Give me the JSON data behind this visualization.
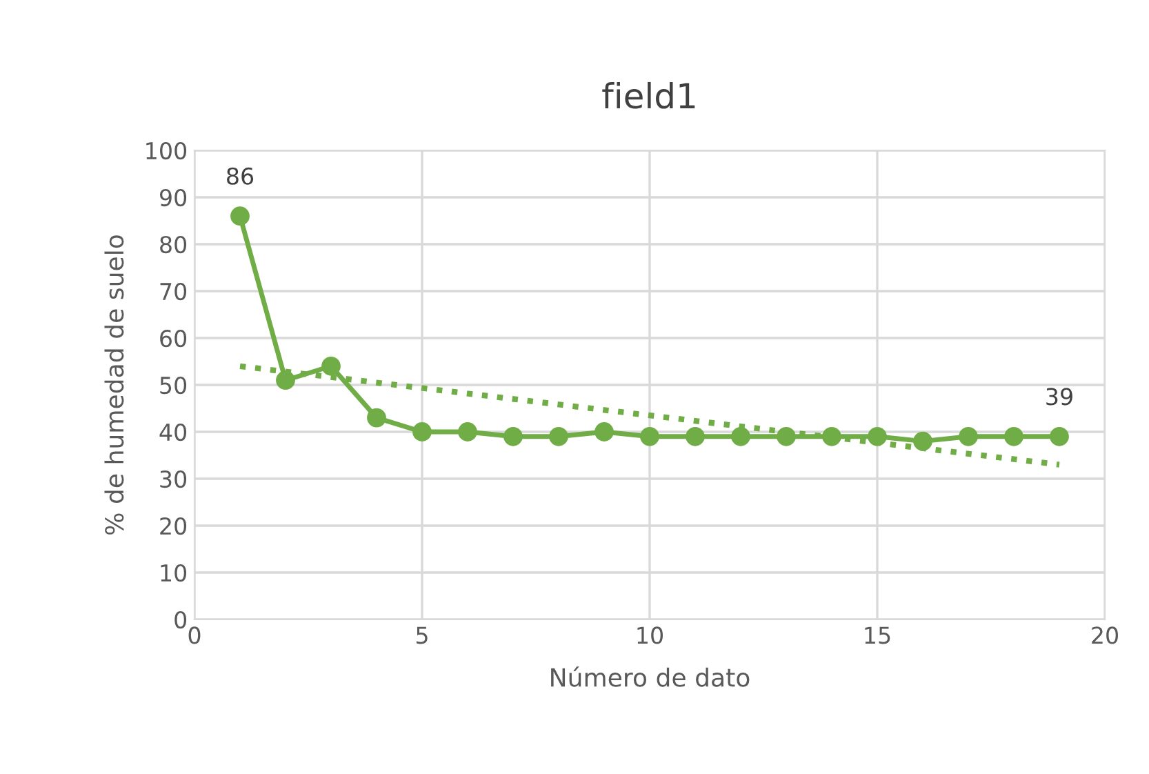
{
  "chart_data": {
    "type": "line",
    "title": "field1",
    "xlabel": "Número de dato",
    "ylabel": "% de humedad de suelo",
    "xlim": [
      0,
      20
    ],
    "xticks": [
      0,
      5,
      10,
      15,
      20
    ],
    "ylim": [
      0,
      100
    ],
    "yticks": [
      0,
      10,
      20,
      30,
      40,
      50,
      60,
      70,
      80,
      90,
      100
    ],
    "grid": true,
    "series": [
      {
        "color": "#70ad47",
        "marker": "circle",
        "line_style": "solid",
        "x": [
          1,
          2,
          3,
          4,
          5,
          6,
          7,
          8,
          9,
          10,
          11,
          12,
          13,
          14,
          15,
          16,
          17,
          18,
          19
        ],
        "values": [
          86,
          51,
          54,
          43,
          40,
          40,
          39,
          39,
          40,
          39,
          39,
          39,
          39,
          39,
          39,
          38,
          39,
          39,
          39
        ],
        "value_labels": [
          "86",
          null,
          null,
          null,
          null,
          null,
          null,
          null,
          null,
          null,
          null,
          null,
          null,
          null,
          null,
          null,
          null,
          null,
          "39"
        ]
      },
      {
        "type": "line",
        "color": "#70ad47",
        "marker": "none",
        "line_style": "dotted",
        "x": [
          1,
          19
        ],
        "values": [
          54,
          33
        ]
      }
    ]
  }
}
